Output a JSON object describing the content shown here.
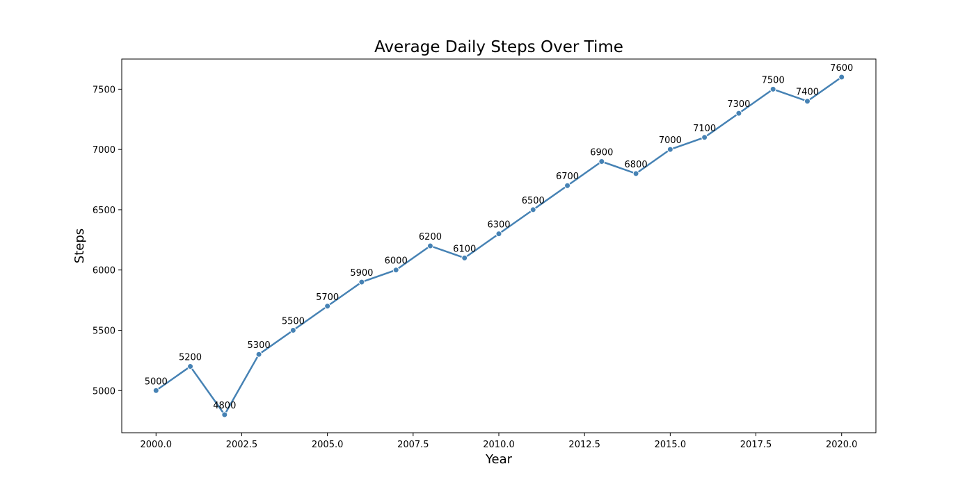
{
  "chart_data": {
    "type": "line",
    "title": "Average Daily Steps Over Time",
    "xlabel": "Year",
    "ylabel": "Steps",
    "xlim": [
      1999.0,
      2021.0
    ],
    "ylim": [
      4650,
      7750
    ],
    "x_ticks": [
      2000.0,
      2002.5,
      2005.0,
      2007.5,
      2010.0,
      2012.5,
      2015.0,
      2017.5,
      2020.0
    ],
    "x_tick_labels": [
      "2000.0",
      "2002.5",
      "2005.0",
      "2007.5",
      "2010.0",
      "2012.5",
      "2015.0",
      "2017.5",
      "2020.0"
    ],
    "y_ticks": [
      5000,
      5500,
      6000,
      6500,
      7000,
      7500
    ],
    "y_tick_labels": [
      "5000",
      "5500",
      "6000",
      "6500",
      "7000",
      "7500"
    ],
    "grid": false,
    "legend": "none",
    "color": "#4682b4",
    "x": [
      2000,
      2001,
      2002,
      2003,
      2004,
      2005,
      2006,
      2007,
      2008,
      2009,
      2010,
      2011,
      2012,
      2013,
      2014,
      2015,
      2016,
      2017,
      2018,
      2019,
      2020
    ],
    "y": [
      5000,
      5200,
      4800,
      5300,
      5500,
      5700,
      5900,
      6000,
      6200,
      6100,
      6300,
      6500,
      6700,
      6900,
      6800,
      7000,
      7100,
      7300,
      7500,
      7400,
      7600
    ],
    "data_labels": [
      "5000",
      "5200",
      "4800",
      "5300",
      "5500",
      "5700",
      "5900",
      "6000",
      "6200",
      "6100",
      "6300",
      "6500",
      "6700",
      "6900",
      "6800",
      "7000",
      "7100",
      "7300",
      "7500",
      "7400",
      "7600"
    ]
  }
}
